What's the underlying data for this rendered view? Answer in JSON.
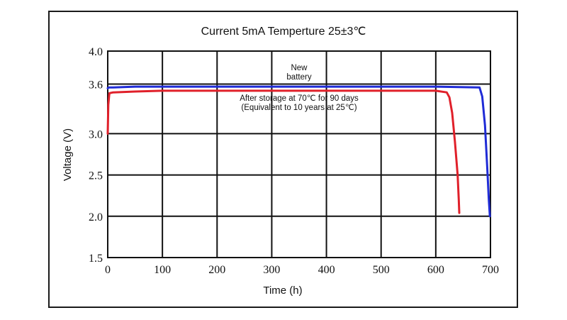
{
  "chart_data": {
    "type": "line",
    "title": "Current 5mA  Temperture 25±3℃",
    "xlabel": "Time (h)",
    "ylabel": "Voltage (V)",
    "xlim": [
      0,
      700
    ],
    "ylim": [
      1.5,
      4.0
    ],
    "x_ticks": [
      "0",
      "100",
      "200",
      "300",
      "400",
      "500",
      "600",
      "700"
    ],
    "y_ticks": [
      "1.5",
      "2.0",
      "2.5",
      "3.0",
      "3.6",
      "4.0"
    ],
    "grid": true,
    "series": [
      {
        "color": "#1f2bd6",
        "points": [
          [
            0,
            3.55
          ],
          [
            2,
            3.56
          ],
          [
            10,
            3.56
          ],
          [
            50,
            3.57
          ],
          [
            100,
            3.57
          ],
          [
            300,
            3.57
          ],
          [
            500,
            3.57
          ],
          [
            600,
            3.57
          ],
          [
            680,
            3.56
          ],
          [
            685,
            3.45
          ],
          [
            690,
            3.1
          ],
          [
            694,
            2.6
          ],
          [
            697,
            2.2
          ],
          [
            699,
            2.0
          ]
        ]
      },
      {
        "color": "#e0202a",
        "points": [
          [
            0,
            3.0
          ],
          [
            1,
            3.35
          ],
          [
            3,
            3.49
          ],
          [
            10,
            3.5
          ],
          [
            50,
            3.51
          ],
          [
            100,
            3.52
          ],
          [
            300,
            3.52
          ],
          [
            500,
            3.52
          ],
          [
            600,
            3.52
          ],
          [
            620,
            3.5
          ],
          [
            625,
            3.44
          ],
          [
            630,
            3.25
          ],
          [
            635,
            2.9
          ],
          [
            640,
            2.5
          ],
          [
            642,
            2.2
          ],
          [
            643,
            2.04
          ]
        ]
      }
    ],
    "annotations": [
      {
        "lines": [
          "New",
          "battery"
        ],
        "x": 350,
        "y": 3.77
      },
      {
        "lines": [
          "After storage at 70℃ for 90 days",
          "(Equivalent to 10 years at 25℃)"
        ],
        "x": 350,
        "y": 3.4
      }
    ]
  }
}
